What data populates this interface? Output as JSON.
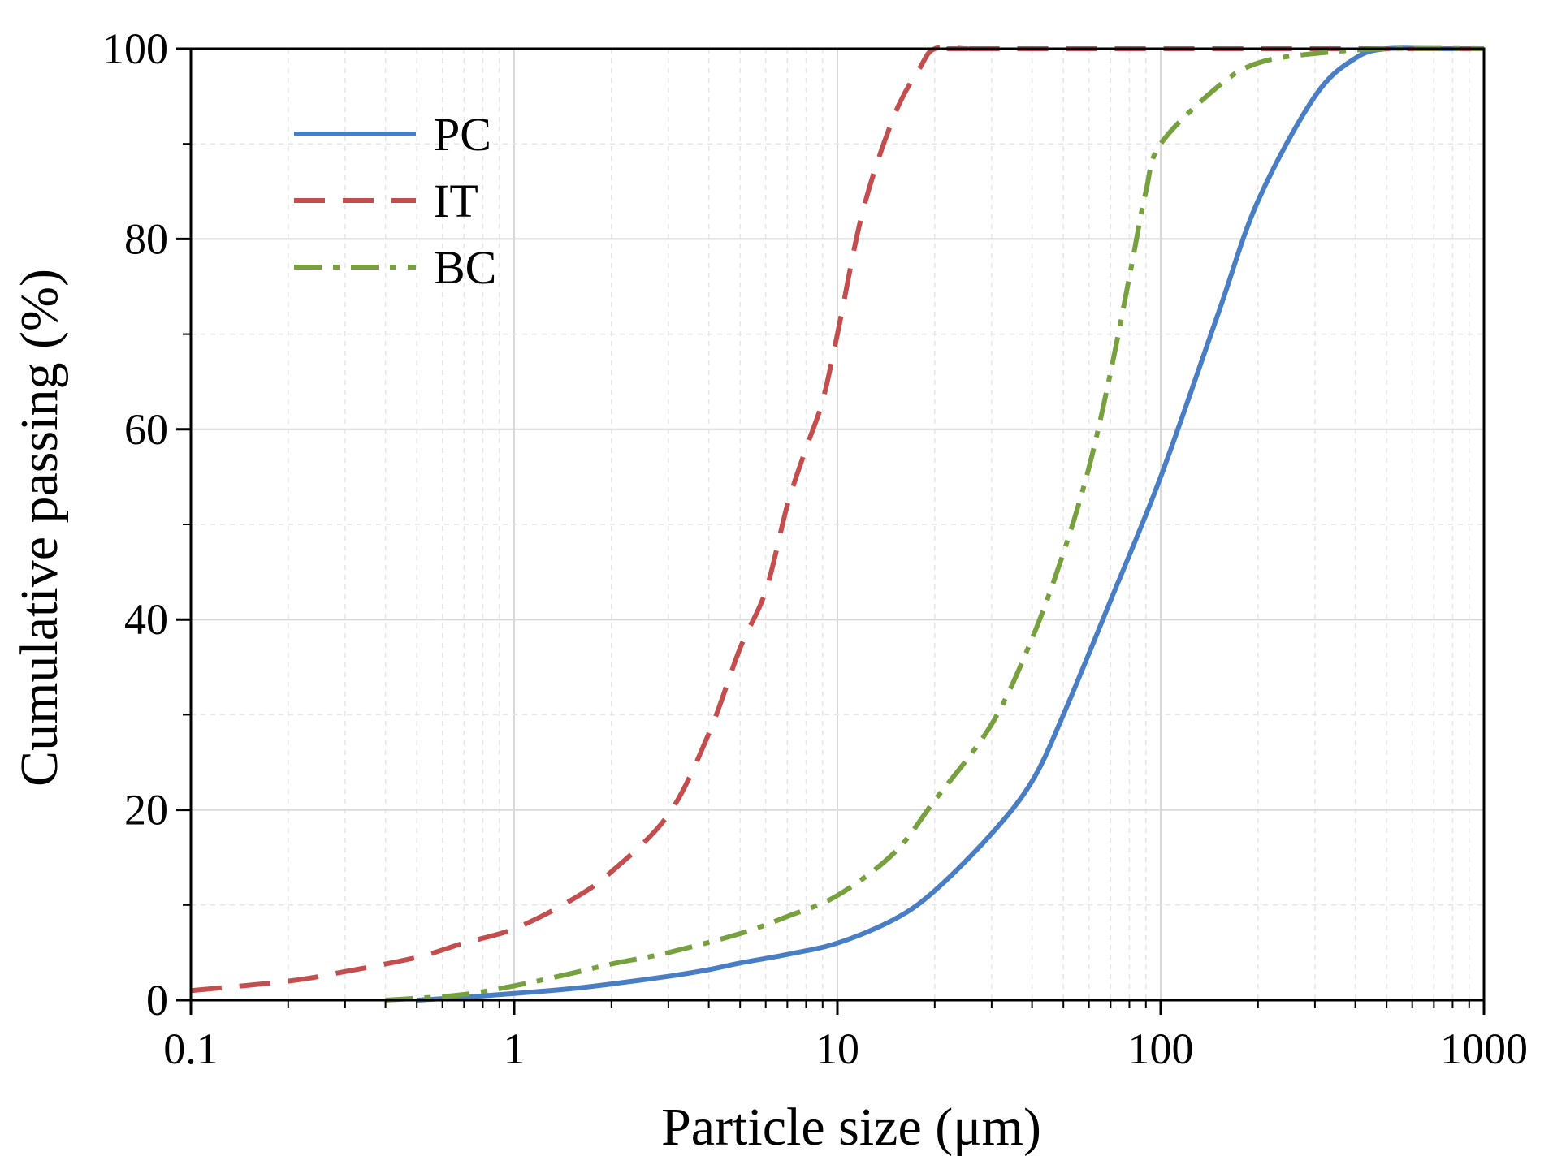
{
  "chart_data": {
    "type": "line",
    "title": "",
    "xlabel": "Particle size (μm)",
    "ylabel": "Cumulative passing (%)",
    "xscale": "log",
    "xlim": [
      0.1,
      1000
    ],
    "ylim": [
      0,
      100
    ],
    "x_ticks": [
      0.1,
      1,
      10,
      100,
      1000
    ],
    "x_tick_labels": [
      "0.1",
      "1",
      "10",
      "100",
      "1000"
    ],
    "y_ticks": [
      0,
      20,
      40,
      60,
      80,
      100
    ],
    "y_tick_labels": [
      "0",
      "20",
      "40",
      "60",
      "80",
      "100"
    ],
    "grid": true,
    "legend_position": "top-left",
    "series": [
      {
        "name": "PC",
        "color": "#4a7ec4",
        "style": "solid",
        "x": [
          0.5,
          0.7,
          1,
          1.5,
          2,
          3,
          4,
          5,
          7,
          10,
          15,
          20,
          30,
          40,
          50,
          70,
          100,
          150,
          200,
          300,
          400,
          500,
          700,
          1000
        ],
        "y": [
          0,
          0.3,
          0.7,
          1.2,
          1.7,
          2.5,
          3.2,
          3.9,
          4.8,
          6.0,
          8.5,
          11.5,
          17.5,
          23,
          30,
          42,
          55,
          72,
          84,
          95,
          99,
          100,
          100,
          100
        ]
      },
      {
        "name": "IT",
        "color": "#c44e4e",
        "style": "dashed",
        "x": [
          0.1,
          0.2,
          0.3,
          0.5,
          0.7,
          1,
          1.5,
          2,
          3,
          4,
          5,
          6,
          7,
          8,
          9,
          10,
          12,
          15,
          18,
          20,
          25,
          30,
          1000
        ],
        "y": [
          1.0,
          2.0,
          3.0,
          4.5,
          6.0,
          7.5,
          10.5,
          13.5,
          19.5,
          28,
          37,
          43,
          52,
          58,
          63,
          70,
          83,
          93,
          98,
          100,
          100,
          100,
          100
        ]
      },
      {
        "name": "BC",
        "color": "#77a03e",
        "style": "dashdot",
        "x": [
          0.4,
          0.5,
          0.7,
          1,
          1.5,
          2,
          3,
          5,
          7,
          10,
          15,
          20,
          30,
          40,
          50,
          60,
          70,
          80,
          90,
          100,
          150,
          200,
          300,
          500,
          1000
        ],
        "y": [
          0,
          0.2,
          0.6,
          1.5,
          2.8,
          3.8,
          5.0,
          7.0,
          8.8,
          11.0,
          15.5,
          21,
          29,
          38,
          47,
          56,
          66,
          76,
          85,
          90,
          96,
          98.5,
          99.5,
          100,
          100
        ]
      }
    ]
  }
}
